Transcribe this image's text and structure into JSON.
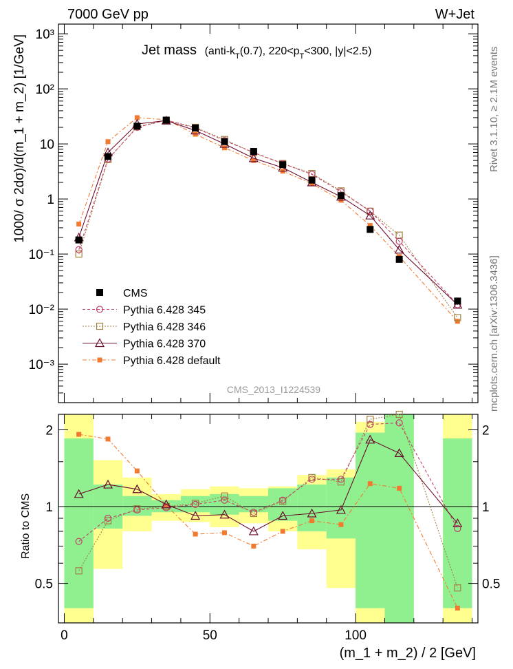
{
  "header": {
    "left": "7000 GeV pp",
    "right": "W+Jet"
  },
  "title": {
    "main": "Jet mass",
    "sub_pre": "(anti-k",
    "sub_t1": "T",
    "sub_mid": "(0.7), 220<p",
    "sub_t2": "T",
    "sub_post": "<300, |y|<2.5)"
  },
  "side_text": {
    "rivet": "Rivet 3.1.10, ≥ 2.1M events",
    "mcplots": "mcplots.cern.ch [arXiv:1306.3436]"
  },
  "watermark": "CMS_2013_I1224539",
  "colors": {
    "cms": "#000000",
    "p345": "#c0406a",
    "p346": "#a08040",
    "p370": "#6a0a2a",
    "pdef": "#f27a30",
    "band_inner": "#90f090",
    "band_outer": "#ffff90"
  },
  "chart_data": [
    {
      "type": "scatter",
      "ylabel": "1000/ σ 2dσ)/d(m_1 + m_2) [1/GeV]",
      "yscale": "log",
      "ylim": [
        0.0002,
        1500
      ],
      "xlim": [
        -2,
        142
      ],
      "ytick_labels": [
        "10⁻³",
        "10⁻²",
        "10⁻¹",
        "1",
        "10",
        "10²",
        "10³"
      ],
      "x": [
        5,
        15,
        25,
        35,
        45,
        55,
        65,
        75,
        85,
        95,
        105,
        115,
        135
      ],
      "x_edges": [
        [
          0,
          10
        ],
        [
          10,
          20
        ],
        [
          20,
          30
        ],
        [
          30,
          40
        ],
        [
          40,
          50
        ],
        [
          50,
          60
        ],
        [
          60,
          70
        ],
        [
          70,
          80
        ],
        [
          80,
          90
        ],
        [
          90,
          100
        ],
        [
          100,
          110
        ],
        [
          110,
          120
        ],
        [
          130,
          140
        ]
      ],
      "legend": [
        "CMS",
        "Pythia 6.428 345",
        "Pythia 6.428 346",
        "Pythia 6.428 370",
        "Pythia 6.428 default"
      ],
      "series": [
        {
          "name": "CMS",
          "values": [
            0.18,
            5.9,
            21,
            27,
            19.5,
            11,
            7.3,
            4.2,
            2.2,
            1.15,
            0.28,
            0.08,
            0.014
          ]
        },
        {
          "name": "Pythia 6.428 345",
          "values": [
            0.12,
            5.3,
            20,
            27,
            19.5,
            11.5,
            7,
            4.4,
            2.8,
            1.35,
            0.6,
            0.17,
            0.012
          ]
        },
        {
          "name": "Pythia 6.428 346",
          "values": [
            0.1,
            5.2,
            20.5,
            27,
            20,
            12,
            6.9,
            4.4,
            2.9,
            1.4,
            0.6,
            0.22,
            0.007
          ]
        },
        {
          "name": "Pythia 6.428 370",
          "values": [
            0.2,
            7,
            23,
            26.5,
            17.5,
            10,
            5.5,
            3.7,
            2,
            1.1,
            0.5,
            0.12,
            0.012
          ]
        },
        {
          "name": "Pythia 6.428 default",
          "values": [
            0.35,
            11,
            30,
            27.5,
            15,
            8.5,
            5,
            3.2,
            1.9,
            0.95,
            0.33,
            0.09,
            0.006
          ]
        }
      ]
    },
    {
      "type": "scatter",
      "ylabel": "Ratio to CMS",
      "xlabel": "(m_1 + m_2) / 2 [GeV]",
      "ylim": [
        0.35,
        2.3
      ],
      "xlim": [
        -2,
        142
      ],
      "yticks": [
        0.5,
        1,
        2
      ],
      "ytick_labels": [
        "0.5",
        "1",
        "2"
      ],
      "xticks": [
        0,
        50,
        100
      ],
      "xtick_labels": [
        "0",
        "50",
        "100"
      ],
      "x": [
        5,
        15,
        25,
        35,
        45,
        55,
        65,
        75,
        85,
        95,
        105,
        115,
        135
      ],
      "band_inner": [
        [
          0.4,
          1.85
        ],
        [
          0.82,
          1.22
        ],
        [
          0.92,
          1.1
        ],
        [
          0.95,
          1.06
        ],
        [
          0.95,
          1.1
        ],
        [
          0.93,
          1.12
        ],
        [
          0.95,
          1.1
        ],
        [
          0.88,
          1.18
        ],
        [
          0.8,
          1.22
        ],
        [
          0.75,
          1.3
        ],
        [
          0.4,
          1.95
        ],
        [
          0.35,
          2.3
        ],
        [
          0.4,
          1.85
        ]
      ],
      "band_outer": [
        [
          0.35,
          2.3
        ],
        [
          0.57,
          1.52
        ],
        [
          0.8,
          1.3
        ],
        [
          0.88,
          1.12
        ],
        [
          0.87,
          1.17
        ],
        [
          0.83,
          1.2
        ],
        [
          0.86,
          1.18
        ],
        [
          0.8,
          1.2
        ],
        [
          0.68,
          1.33
        ],
        [
          0.48,
          1.4
        ],
        [
          0.35,
          2.15
        ],
        [
          0.35,
          2.3
        ],
        [
          0.35,
          2.3
        ]
      ],
      "series": [
        {
          "name": "Pythia 6.428 345",
          "values": [
            0.73,
            0.9,
            0.97,
            0.99,
            1.02,
            1.06,
            0.95,
            1.06,
            1.28,
            1.28,
            2.1,
            2.13,
            0.82
          ]
        },
        {
          "name": "Pythia 6.428 346",
          "values": [
            0.56,
            0.88,
            0.98,
            1.0,
            1.03,
            1.1,
            0.94,
            1.05,
            1.3,
            1.25,
            2.2,
            2.3,
            0.48
          ]
        },
        {
          "name": "Pythia 6.428 370",
          "values": [
            1.12,
            1.22,
            1.17,
            1.02,
            0.92,
            0.93,
            0.8,
            0.92,
            0.94,
            0.97,
            1.83,
            1.62,
            0.86
          ]
        },
        {
          "name": "Pythia 6.428 default",
          "values": [
            1.92,
            1.84,
            1.38,
            1.01,
            0.78,
            0.79,
            0.7,
            0.8,
            0.88,
            0.85,
            1.23,
            1.18,
            0.4
          ]
        }
      ]
    }
  ]
}
